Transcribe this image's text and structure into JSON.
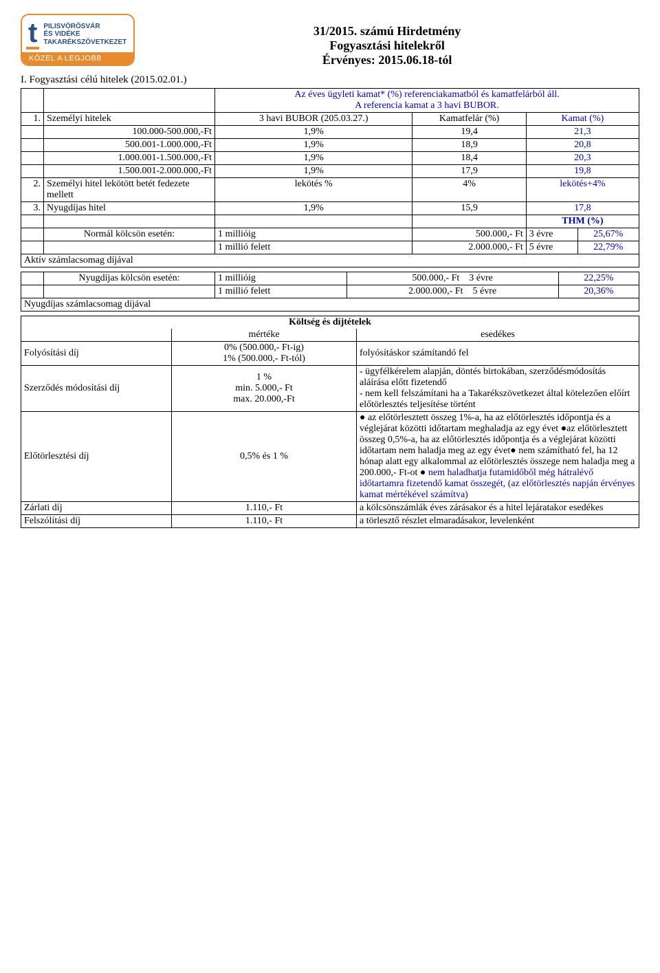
{
  "logo": {
    "letter": "t",
    "line1": "PILISVÖRÖSVÁR",
    "line2": "ÉS VIDÉKE",
    "line3": "TAKARÉKSZÖVETKEZET",
    "slogan": "KÖZEL A LEGJOBB",
    "border_color": "#e88b2e",
    "text_color": "#2a4f8a"
  },
  "title": {
    "l1": "31/2015. számú Hirdetmény",
    "l2": "Fogyasztási hitelekről",
    "l3": "Érvényes: 2015.06.18-tól"
  },
  "section_i": "I. Fogyasztási célú hitelek (2015.02.01.)",
  "intro": {
    "l1": "Az éves ügyleti kamat* (%) referenciakamatból és kamatfelárból áll.",
    "l2": "A referencia kamat a 3 havi BUBOR."
  },
  "main": {
    "r1_num": "1.",
    "r1_label": "Személyi hitelek",
    "r1_c1": "3 havi  BUBOR (205.03.27.)",
    "r1_c2": "Kamatfelár (%)",
    "r1_c3": "Kamat (%)",
    "rows": [
      {
        "label": "100.000-500.000,-Ft",
        "a": "1,9%",
        "b": "19,4",
        "c": "21,3"
      },
      {
        "label": "500.001-1.000.000,-Ft",
        "a": "1,9%",
        "b": "18,9",
        "c": "20,8"
      },
      {
        "label": "1.000.001-1.500.000,-Ft",
        "a": "1,9%",
        "b": "18,4",
        "c": "20,3"
      },
      {
        "label": "1.500.001-2.000.000,-Ft",
        "a": "1,9%",
        "b": "17,9",
        "c": "19,8"
      }
    ],
    "r6_num": "2.",
    "r6_label": "Személyi hitel lekötött betét fedezete mellett",
    "r6_a": "lekötés %",
    "r6_b": "4%",
    "r6_c": "lekötés+4%",
    "r7_num": "3.",
    "r7_label": "Nyugdíjas hitel",
    "r7_a": "1,9%",
    "r7_b": "15,9",
    "r7_c": "17,8",
    "thm_header": "THM (%)",
    "normal_label": "Normál kölcsön esetén:",
    "normal_r1_a": "1 millióig",
    "normal_r1_b": "500.000,- Ft",
    "normal_r1_c": "3 évre",
    "normal_r1_d": "25,67%",
    "normal_r2_a": "1 millió felett",
    "normal_r2_b": "2.000.000,- Ft",
    "normal_r2_c": "5 évre",
    "normal_r2_d": "22,79%",
    "active_footer": "Aktív számlacsomag díjával",
    "nyug_label": "Nyugdíjas kölcsön esetén:",
    "nyug_r1_a": "1 millióig",
    "nyug_r1_b": "500.000,- Ft",
    "nyug_r1_c": "3 évre",
    "nyug_r1_d": "22,25%",
    "nyug_r2_a": "1 millió felett",
    "nyug_r2_b": "2.000.000,- Ft",
    "nyug_r2_c": "5 évre",
    "nyug_r2_d": "20,36%",
    "nyug_footer": "Nyugdíjas számlacsomag díjával"
  },
  "fees": {
    "title": "Költség és díjtételek",
    "h1": "mértéke",
    "h2": "esedékes",
    "rows": [
      {
        "label": "Folyósítási díj",
        "mid_l1": "0% (500.000,- Ft-ig)",
        "mid_l2": "1%  (500.000,- Ft-tól)",
        "right": "folyósításkor számítandó fel"
      },
      {
        "label": "Szerződés módosítási díj",
        "mid_l1": "1 %",
        "mid_l2": "min. 5.000,- Ft",
        "mid_l3": "max. 20.000,-Ft",
        "right": "- ügyfélkérelem alapján, döntés birtokában, szerződésmódosítás aláírása előtt fizetendő\n- nem kell felszámítani ha a Takarékszövetkezet által kötelezően előírt előtörlesztés teljesítése történt"
      },
      {
        "label": "Előtörlesztési díj",
        "mid_l1": "0,5% és 1 %",
        "right_parts": [
          {
            "bullet": "● ",
            "text": "az előtörlesztett összeg 1%-a, ha az előtörlesztés időpontja és a véglejárat közötti időtartam meghaladja az egy évet "
          },
          {
            "bullet": "●",
            "text": "az előtörlesztett összeg 0,5%-a,  ha az előtörlesztés időpontja és a véglejárat közötti időtartam nem haladja meg az egy évet"
          },
          {
            "bullet": "● ",
            "text": "nem számítható fel, ha 12 hónap alatt egy alkalommal az előtörlesztés összege nem haladja meg a 200.000,- Ft-ot "
          },
          {
            "bullet": "● ",
            "blue": true,
            "text": "nem haladhatja futamidőből még hátralévő időtartamra fizetendő kamat összegét, (az előtörlesztés napján érvényes kamat mértékével számítva)"
          }
        ]
      },
      {
        "label": "Zárlati díj",
        "mid_l1": "1.110,- Ft",
        "right": "a kölcsönszámlák éves zárásakor és a hitel lejáratakor esedékes"
      },
      {
        "label": "Felszólítási díj",
        "mid_l1": "1.110,- Ft",
        "right": "a törlesztő részlet elmaradásakor, levelenként"
      }
    ]
  },
  "colors": {
    "link_blue": "#0000cc",
    "border": "#000000",
    "orange": "#e88b2e",
    "logo_blue": "#2a4f8a"
  }
}
